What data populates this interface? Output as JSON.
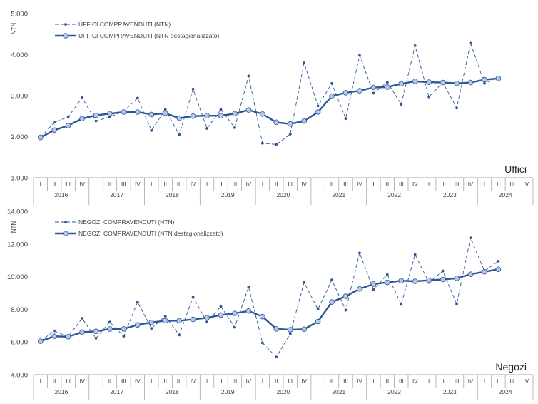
{
  "colors": {
    "line": "#2e5597",
    "marker_fill": "#b4c7e7",
    "axis": "#a6a6a6",
    "text": "#404040"
  },
  "chart_data": [
    {
      "type": "line",
      "ylabel": "NTN",
      "ylim": [
        1000,
        5000
      ],
      "yticks": [
        "1.000",
        "2.000",
        "3.000",
        "4.000",
        "5.000"
      ],
      "ytick_values": [
        1000,
        2000,
        3000,
        4000,
        5000
      ],
      "corner_label": "Uffici",
      "quarter_labels": [
        "I",
        "II",
        "III",
        "IV"
      ],
      "years": [
        "2016",
        "2017",
        "2018",
        "2019",
        "2020",
        "2021",
        "2022",
        "2023",
        "2024"
      ],
      "series": [
        {
          "name": "UFFICI COMPRAVENDUTI (NTN)",
          "style": "dashed",
          "values": [
            1980,
            2350,
            2480,
            2950,
            2380,
            2480,
            2620,
            2940,
            2150,
            2660,
            2050,
            3160,
            2200,
            2660,
            2220,
            3480,
            1840,
            1810,
            2060,
            3800,
            2750,
            3300,
            2440,
            3980,
            3060,
            3330,
            2790,
            4220,
            2970,
            3320,
            2700,
            4280,
            3300,
            3440
          ]
        },
        {
          "name": "UFFICI COMPRAVENDUTI (NTN destagionalizzato)",
          "style": "solid",
          "values": [
            1980,
            2160,
            2270,
            2440,
            2520,
            2560,
            2600,
            2600,
            2540,
            2570,
            2450,
            2500,
            2510,
            2510,
            2560,
            2650,
            2550,
            2350,
            2310,
            2380,
            2600,
            2990,
            3070,
            3120,
            3200,
            3210,
            3290,
            3350,
            3330,
            3320,
            3300,
            3320,
            3390,
            3420
          ]
        }
      ]
    },
    {
      "type": "line",
      "ylabel": "NTN",
      "ylim": [
        4000,
        14000
      ],
      "yticks": [
        "4.000",
        "6.000",
        "8.000",
        "10.000",
        "12.000",
        "14.000"
      ],
      "ytick_values": [
        4000,
        6000,
        8000,
        10000,
        12000,
        14000
      ],
      "corner_label": "Negozi",
      "quarter_labels": [
        "I",
        "II",
        "III",
        "IV"
      ],
      "years": [
        "2016",
        "2017",
        "2018",
        "2019",
        "2020",
        "2021",
        "2022",
        "2023",
        "2024"
      ],
      "series": [
        {
          "name": "NEGOZI COMPRAVENDUTI (NTN)",
          "style": "dashed",
          "values": [
            6050,
            6680,
            6320,
            7450,
            6230,
            7220,
            6350,
            8450,
            6830,
            7580,
            6430,
            8750,
            7220,
            8180,
            6900,
            9370,
            5950,
            5080,
            6500,
            9650,
            8000,
            9800,
            7950,
            11450,
            9220,
            10130,
            8300,
            11350,
            9650,
            10350,
            8330,
            12380,
            10350,
            10950
          ]
        },
        {
          "name": "NEGOZI COMPRAVENDUTI (NTN destagionalizzato)",
          "style": "solid",
          "values": [
            6050,
            6350,
            6320,
            6600,
            6650,
            6800,
            6800,
            7050,
            7200,
            7300,
            7300,
            7380,
            7480,
            7650,
            7750,
            7900,
            7550,
            6800,
            6750,
            6780,
            7250,
            8450,
            8800,
            9250,
            9550,
            9650,
            9750,
            9720,
            9780,
            9830,
            9900,
            10150,
            10300,
            10450
          ]
        }
      ]
    }
  ]
}
